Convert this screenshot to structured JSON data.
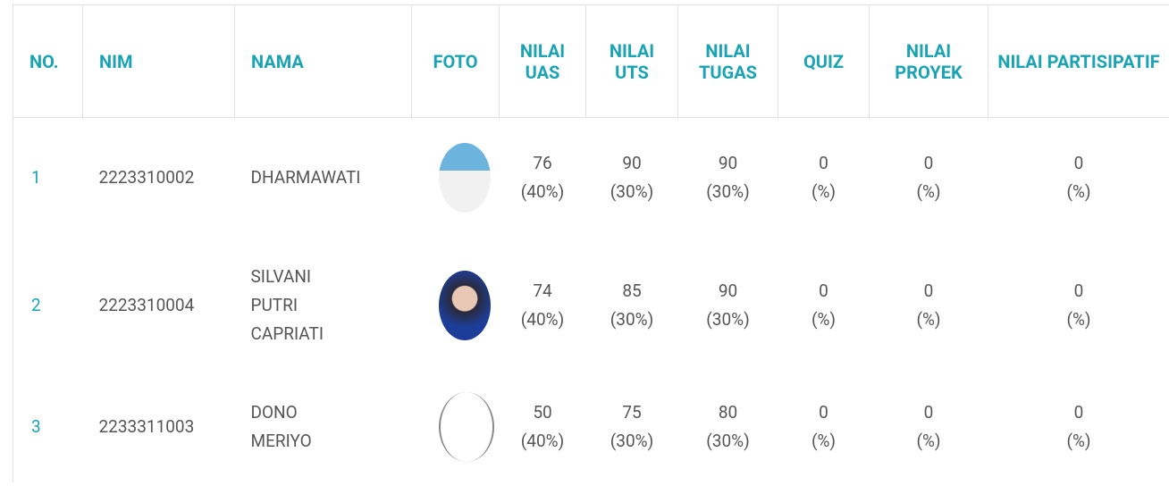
{
  "table": {
    "headers": [
      "NO.",
      "NIM",
      "NAMA",
      "FOTO",
      "NILAI UAS",
      "NILAI UTS",
      "NILAI TUGAS",
      "QUIZ",
      "NILAI PROYEK",
      "NILAI PARTISIPATIF"
    ],
    "rows": [
      {
        "no": "1",
        "nim": "2223310002",
        "nama": "DHARMAWATI",
        "scores": [
          {
            "value": 76,
            "weight": "(40%)"
          },
          {
            "value": 90,
            "weight": "(30%)"
          },
          {
            "value": 90,
            "weight": "(30%)"
          },
          {
            "value": 0,
            "weight": "(%)"
          },
          {
            "value": 0,
            "weight": "(%)"
          },
          {
            "value": 0,
            "weight": "(%)"
          }
        ]
      },
      {
        "no": "2",
        "nim": "2223310004",
        "nama": "SILVANI PUTRI CAPRIATI",
        "scores": [
          {
            "value": 74,
            "weight": "(40%)"
          },
          {
            "value": 85,
            "weight": "(30%)"
          },
          {
            "value": 90,
            "weight": "(30%)"
          },
          {
            "value": 0,
            "weight": "(%)"
          },
          {
            "value": 0,
            "weight": "(%)"
          },
          {
            "value": 0,
            "weight": "(%)"
          }
        ]
      },
      {
        "no": "3",
        "nim": "2233311003",
        "nama": "DONO MERIYO",
        "scores": [
          {
            "value": 50,
            "weight": "(40%)"
          },
          {
            "value": 75,
            "weight": "(30%)"
          },
          {
            "value": 80,
            "weight": "(30%)"
          },
          {
            "value": 0,
            "weight": "(%)"
          },
          {
            "value": 0,
            "weight": "(%)"
          },
          {
            "value": 0,
            "weight": "(%)"
          }
        ]
      }
    ]
  }
}
